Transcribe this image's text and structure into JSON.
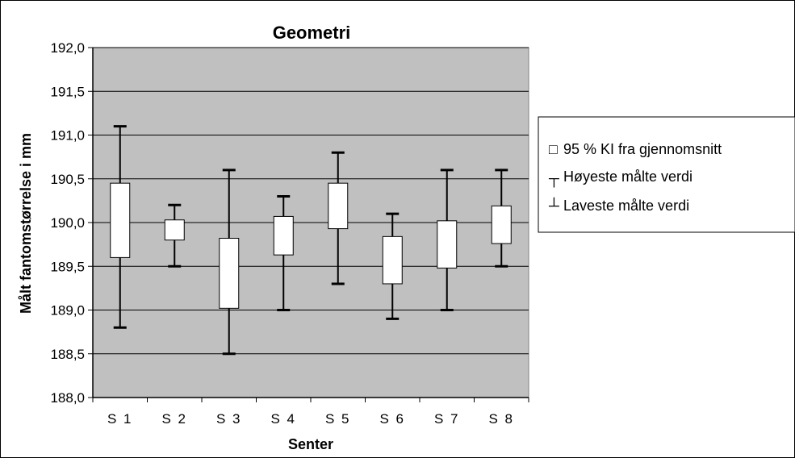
{
  "chart_data": {
    "type": "box",
    "title": "Geometri",
    "xlabel": "Senter",
    "ylabel": "Målt fantomstørrelse i mm",
    "ylim": [
      188.0,
      192.0
    ],
    "yticks": [
      "188,0",
      "188,5",
      "189,0",
      "189,5",
      "190,0",
      "190,5",
      "191,0",
      "191,5",
      "192,0"
    ],
    "ytick_values": [
      188.0,
      188.5,
      189.0,
      189.5,
      190.0,
      190.5,
      191.0,
      191.5,
      192.0
    ],
    "grid": true,
    "categories": [
      "S 1",
      "S 2",
      "S 3",
      "S 4",
      "S 5",
      "S 6",
      "S 7",
      "S 8"
    ],
    "series": [
      {
        "ci_low": 189.6,
        "ci_high": 190.45,
        "max": 191.1,
        "min": 188.8
      },
      {
        "ci_low": 189.8,
        "ci_high": 190.03,
        "max": 190.2,
        "min": 189.5
      },
      {
        "ci_low": 189.02,
        "ci_high": 189.82,
        "max": 190.6,
        "min": 188.5
      },
      {
        "ci_low": 189.63,
        "ci_high": 190.07,
        "max": 190.3,
        "min": 189.0
      },
      {
        "ci_low": 189.93,
        "ci_high": 190.45,
        "max": 190.8,
        "min": 189.3
      },
      {
        "ci_low": 189.3,
        "ci_high": 189.84,
        "max": 190.1,
        "min": 188.9
      },
      {
        "ci_low": 189.48,
        "ci_high": 190.02,
        "max": 190.6,
        "min": 189.0
      },
      {
        "ci_low": 189.76,
        "ci_high": 190.19,
        "max": 190.6,
        "min": 189.5
      }
    ],
    "legend": {
      "placement": "right",
      "entries": [
        {
          "symbol": "□",
          "label": "95 % KI fra gjennomsnitt"
        },
        {
          "symbol": "┬",
          "label": "Høyeste målte verdi"
        },
        {
          "symbol": "┴",
          "label": "Laveste målte verdi"
        }
      ]
    },
    "colors": {
      "plot_bg": "#c0c0c0",
      "box_fill": "#ffffff",
      "line": "#000000"
    }
  }
}
